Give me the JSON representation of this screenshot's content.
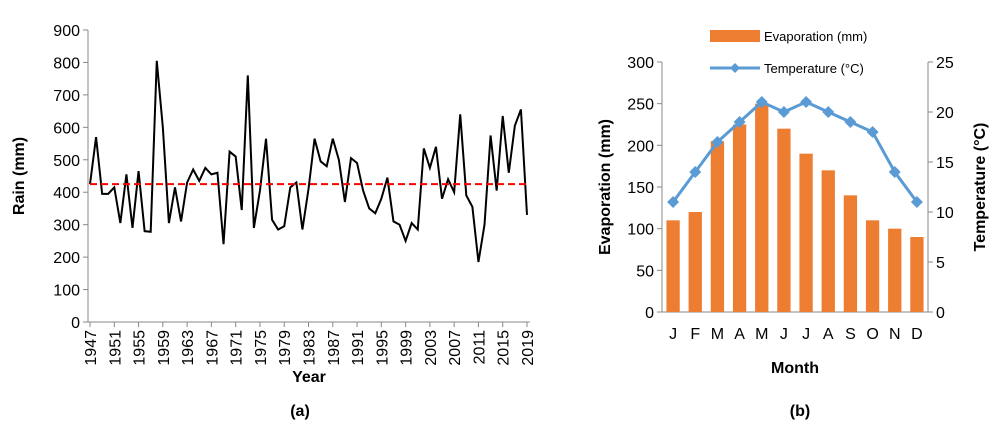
{
  "chart_data": [
    {
      "type": "line",
      "caption": "(a)",
      "x_label": "Year",
      "y_label": "Rain (mm)",
      "x": [
        1947,
        1948,
        1949,
        1950,
        1951,
        1952,
        1953,
        1954,
        1955,
        1956,
        1957,
        1958,
        1959,
        1960,
        1961,
        1962,
        1963,
        1964,
        1965,
        1966,
        1967,
        1968,
        1969,
        1970,
        1971,
        1972,
        1973,
        1974,
        1975,
        1976,
        1977,
        1978,
        1979,
        1980,
        1981,
        1982,
        1983,
        1984,
        1985,
        1986,
        1987,
        1988,
        1989,
        1990,
        1991,
        1992,
        1993,
        1994,
        1995,
        1996,
        1997,
        1998,
        1999,
        2000,
        2001,
        2002,
        2003,
        2004,
        2005,
        2006,
        2007,
        2008,
        2009,
        2010,
        2011,
        2012,
        2013,
        2014,
        2015,
        2016,
        2017,
        2018,
        2019
      ],
      "series": [
        {
          "color": "#000000",
          "values": [
            425,
            570,
            395,
            395,
            415,
            305,
            455,
            290,
            465,
            280,
            278,
            805,
            600,
            305,
            415,
            310,
            430,
            470,
            435,
            475,
            455,
            460,
            240,
            525,
            510,
            345,
            760,
            290,
            405,
            565,
            315,
            285,
            295,
            415,
            430,
            285,
            410,
            565,
            495,
            480,
            565,
            500,
            370,
            505,
            490,
            405,
            350,
            335,
            380,
            445,
            310,
            300,
            250,
            305,
            285,
            535,
            475,
            540,
            380,
            440,
            400,
            640,
            390,
            355,
            185,
            300,
            575,
            405,
            635,
            460,
            605,
            655,
            330
          ]
        }
      ],
      "reference_line": {
        "value": 425,
        "color": "#ff0000"
      },
      "xlim": [
        1947,
        2019
      ],
      "xticks": [
        1947,
        1951,
        1955,
        1959,
        1963,
        1967,
        1971,
        1975,
        1979,
        1983,
        1987,
        1991,
        1995,
        1999,
        2003,
        2007,
        2011,
        2015,
        2019
      ],
      "ylim": [
        0,
        900
      ],
      "yticks": [
        0,
        100,
        200,
        300,
        400,
        500,
        600,
        700,
        800,
        900
      ]
    },
    {
      "type": "combo",
      "caption": "(b)",
      "x_label": "Month",
      "y_label": "Evaporation (mm)",
      "y2_label": "Temperature (°C)",
      "categories": [
        "J",
        "F",
        "M",
        "A",
        "M",
        "J",
        "J",
        "A",
        "S",
        "O",
        "N",
        "D"
      ],
      "series": [
        {
          "name": "Evaporation (mm)",
          "kind": "bar",
          "color": "#ed7d31",
          "values": [
            110,
            120,
            205,
            225,
            250,
            220,
            190,
            170,
            140,
            110,
            100,
            90
          ]
        },
        {
          "name": "Temperature (°C)",
          "kind": "line",
          "axis": "y2",
          "color": "#5b9bd5",
          "values": [
            11,
            14,
            17,
            19,
            21,
            20,
            21,
            20,
            19,
            18,
            14,
            11
          ]
        }
      ],
      "ylim": [
        0,
        300
      ],
      "yticks": [
        0,
        50,
        100,
        150,
        200,
        250,
        300
      ],
      "y2lim": [
        0,
        25
      ],
      "y2ticks": [
        0,
        5,
        10,
        15,
        20,
        25
      ],
      "legend": "top"
    }
  ]
}
